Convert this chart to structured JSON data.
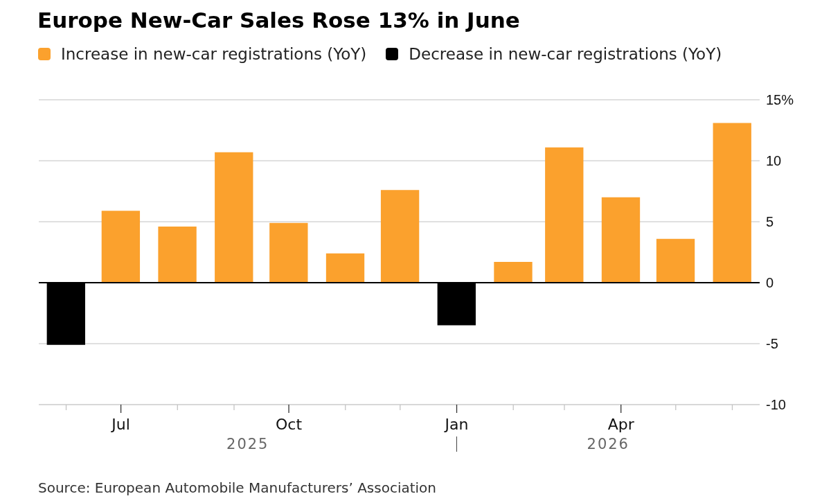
{
  "chart_data": {
    "type": "bar",
    "title": "Europe New-Car Sales Rose 13% in June",
    "x": [
      "2025-06",
      "2025-07",
      "2025-08",
      "2025-09",
      "2025-10",
      "2025-11",
      "2025-12",
      "2026-01",
      "2026-02",
      "2026-03",
      "2026-04",
      "2026-05",
      "2026-06"
    ],
    "series": [
      {
        "name": "Increase in new-car registrations (YoY)",
        "color": "#fba12d",
        "values": [
          null,
          5.9,
          4.6,
          10.7,
          4.9,
          2.4,
          7.6,
          null,
          1.7,
          11.1,
          7.0,
          3.6,
          13.1
        ]
      },
      {
        "name": "Decrease in new-car registrations (YoY)",
        "color": "#000000",
        "values": [
          -5.1,
          null,
          null,
          null,
          null,
          null,
          null,
          -3.5,
          null,
          null,
          null,
          null,
          null
        ]
      }
    ],
    "stacked": true,
    "xlim": [
      "2025-05-17",
      "2026-06-16"
    ],
    "xticks": [
      {
        "value": "2025-06",
        "label": null
      },
      {
        "value": "2025-07",
        "label": "Jul"
      },
      {
        "value": "2025-08",
        "label": null
      },
      {
        "value": "2025-09",
        "label": null
      },
      {
        "value": "2025-10",
        "label": "Oct"
      },
      {
        "value": "2025-11",
        "label": null
      },
      {
        "value": "2025-12",
        "label": null
      },
      {
        "value": "2026-01",
        "label": "Jan"
      },
      {
        "value": "2026-02",
        "label": null
      },
      {
        "value": "2026-03",
        "label": null
      },
      {
        "value": "2026-04",
        "label": "Apr"
      },
      {
        "value": "2026-05",
        "label": null
      },
      {
        "value": "2026-06",
        "label": null
      }
    ],
    "ylim": [
      -10,
      15
    ],
    "yticks": [
      -10,
      -5,
      0,
      5,
      10,
      {
        "value": 15,
        "label": "15%"
      }
    ],
    "grid": "y",
    "legend": "top left",
    "ref_lines": [
      {
        "axis": "y",
        "value": 0,
        "color": "#000000"
      }
    ],
    "annotations": [
      "2025",
      "2026",
      "Source: European Automobile Manufacturers’ Association"
    ]
  }
}
